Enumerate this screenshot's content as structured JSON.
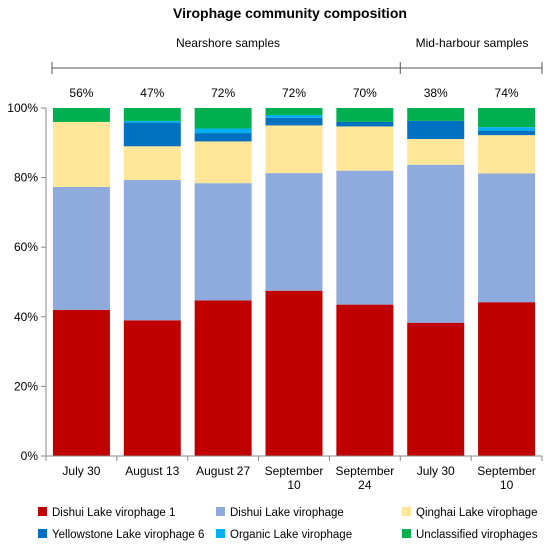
{
  "chart_data": {
    "type": "bar",
    "stacked": true,
    "title": "Virophage community composition",
    "groups": [
      {
        "label": "Nearshore samples",
        "categories": 5
      },
      {
        "label": "Mid-harbour samples",
        "categories": 2
      }
    ],
    "categories": [
      "July 30",
      "August 13",
      "August 27",
      "September\n10",
      "September\n24",
      "July 30",
      "September\n10"
    ],
    "top_labels": [
      "56%",
      "47%",
      "72%",
      "72%",
      "70%",
      "38%",
      "74%"
    ],
    "yticks": [
      "0%",
      "20%",
      "40%",
      "60%",
      "80%",
      "100%"
    ],
    "ylim": [
      0,
      100
    ],
    "series": [
      {
        "name": "Dishui Lake virophage 1",
        "color": "#c00000",
        "values": [
          42,
          39,
          44.7,
          47.5,
          43.5,
          38.3,
          44.2
        ]
      },
      {
        "name": "Dishui Lake virophage",
        "color": "#8faadc",
        "values": [
          35.3,
          40.3,
          33.7,
          33.8,
          38.5,
          45.4,
          37
        ]
      },
      {
        "name": "Qinghai Lake virophage",
        "color": "#ffe699",
        "values": [
          18.7,
          9.7,
          12,
          13.7,
          12.7,
          7.4,
          11
        ]
      },
      {
        "name": "Yellowstone Lake virophage 6",
        "color": "#0070c0",
        "values": [
          0,
          6.8,
          2.4,
          2.2,
          1.3,
          5.2,
          1.3
        ]
      },
      {
        "name": "Organic Lake virophage",
        "color": "#00b0f0",
        "values": [
          0,
          0.5,
          1.3,
          0.8,
          0,
          0,
          1
        ]
      },
      {
        "name": "Unclassified virophages",
        "color": "#00b050",
        "values": [
          4,
          3.7,
          5.9,
          2,
          4,
          3.7,
          5.5
        ]
      }
    ]
  }
}
